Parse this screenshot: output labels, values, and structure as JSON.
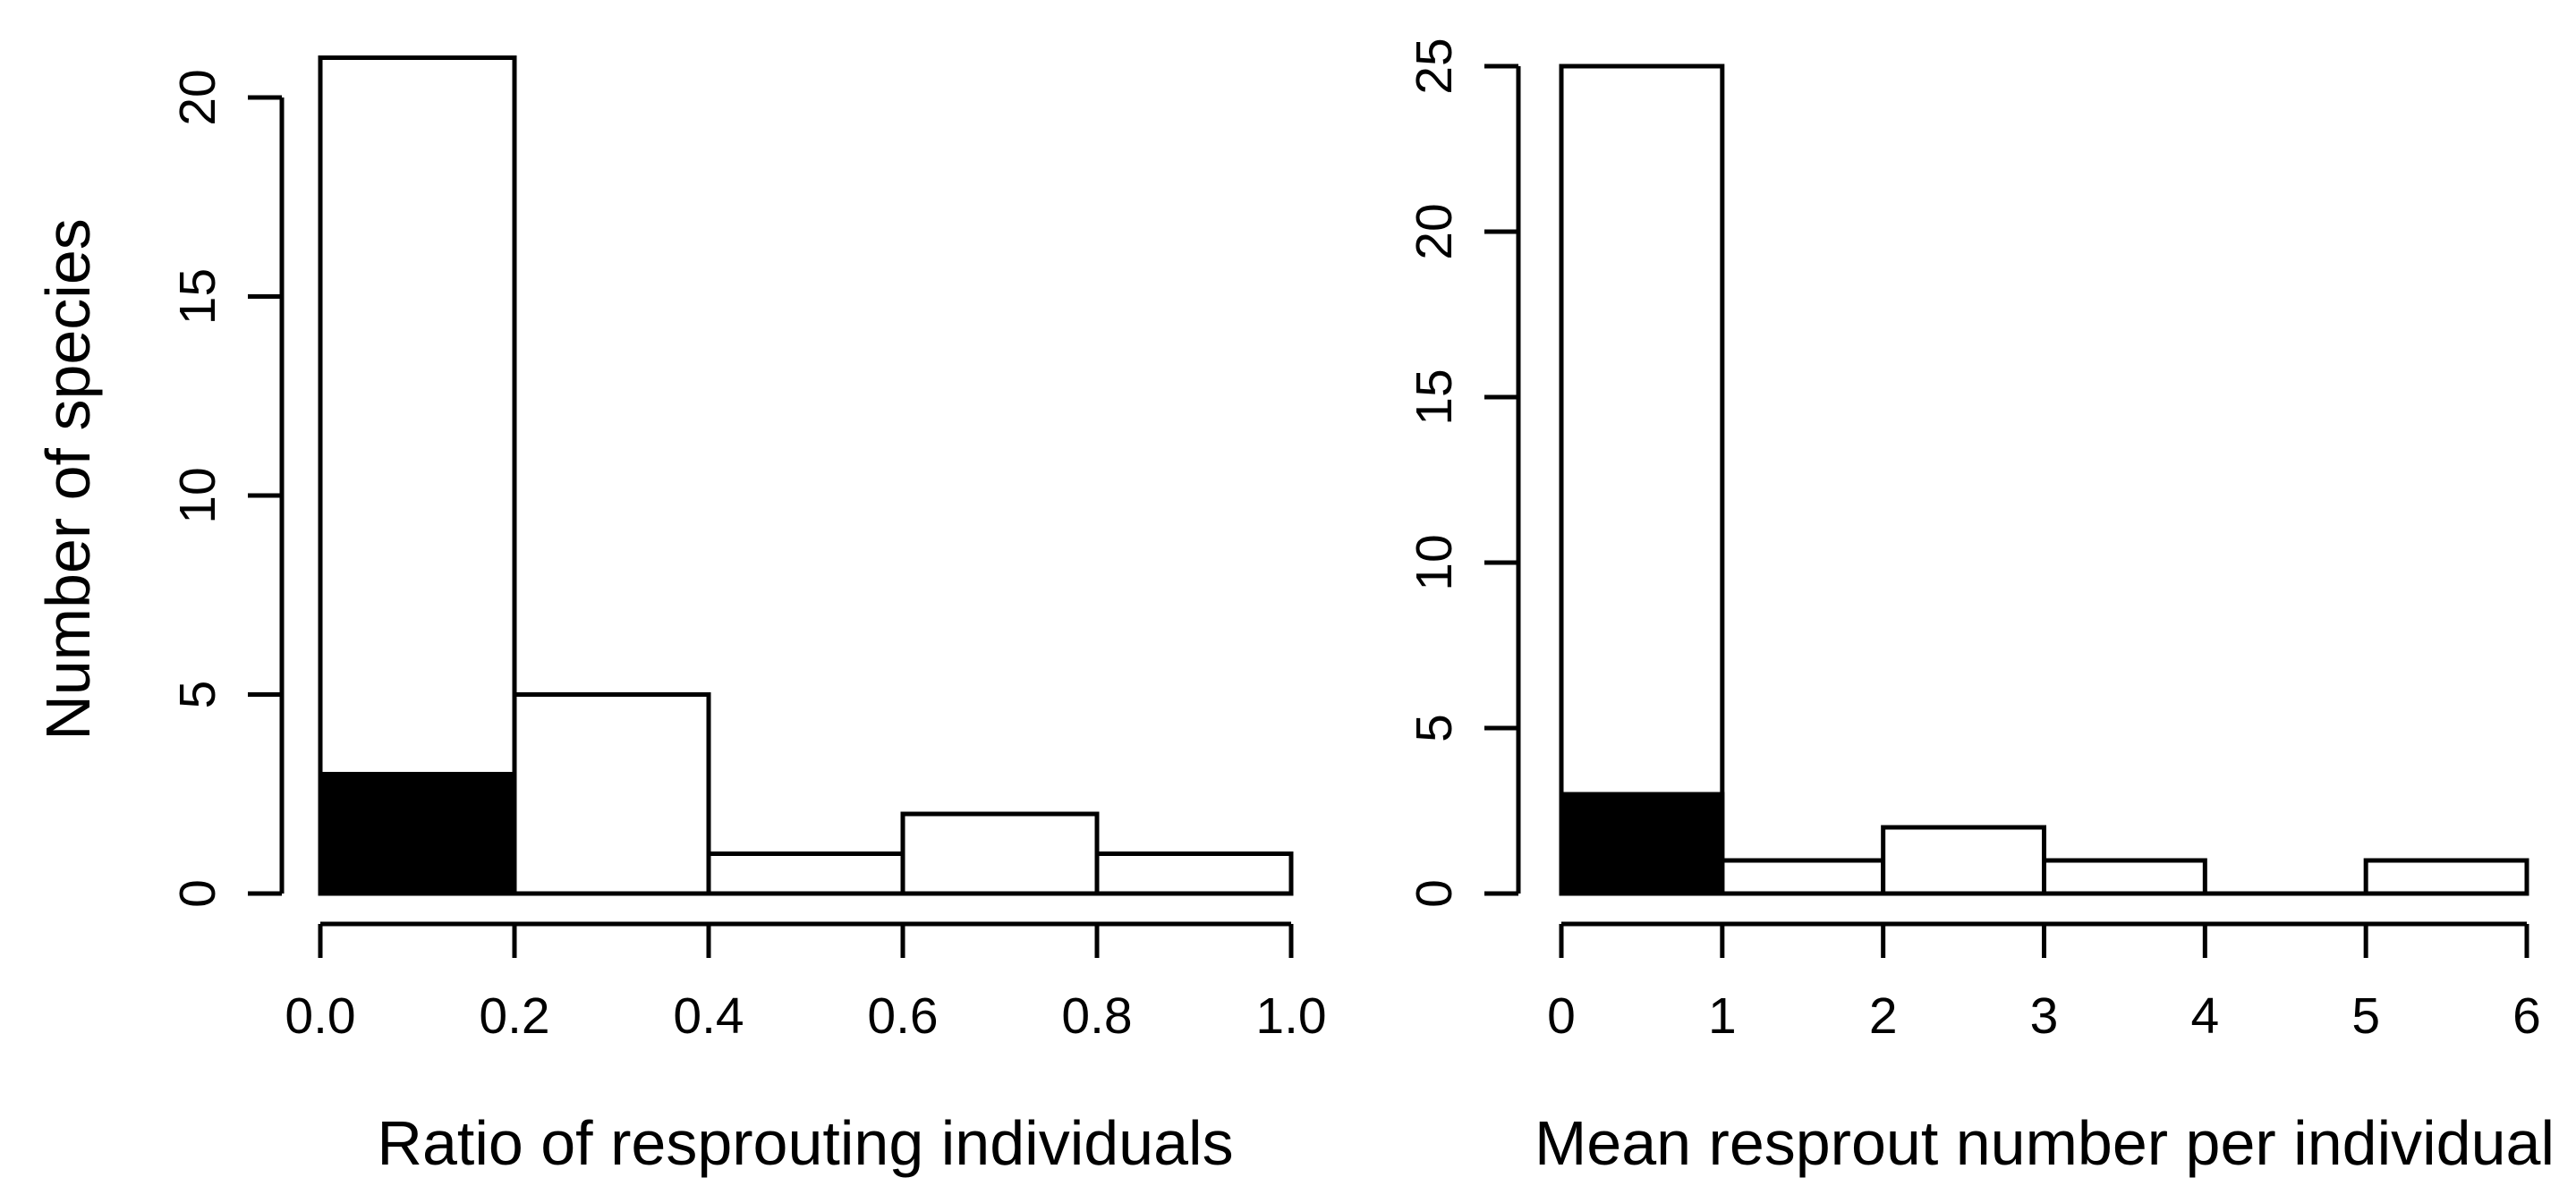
{
  "style": {
    "background": "#ffffff",
    "stroke_color": "#000000",
    "text_color": "#000000",
    "bar_fill": "#ffffff",
    "highlight_fill": "#000000"
  },
  "chart_data": [
    {
      "type": "bar",
      "subtype": "histogram",
      "panel": "left",
      "xlabel": "Ratio of resprouting individuals",
      "ylabel": "Number of species",
      "bin_edges": [
        0.0,
        0.2,
        0.4,
        0.6,
        0.8,
        1.0
      ],
      "series": [
        {
          "name": "all-species-open-bars",
          "fill": "#ffffff",
          "values": [
            21,
            5,
            1,
            2,
            1
          ]
        },
        {
          "name": "highlighted-subset-filled-bars",
          "fill": "#000000",
          "values": [
            3,
            0,
            0,
            0,
            0
          ]
        }
      ],
      "x_tick_values": [
        0.0,
        0.2,
        0.4,
        0.6,
        0.8,
        1.0
      ],
      "x_tick_labels": [
        "0.0",
        "0.2",
        "0.4",
        "0.6",
        "0.8",
        "1.0"
      ],
      "y_tick_values": [
        0,
        5,
        10,
        15,
        20
      ],
      "y_tick_labels": [
        "0",
        "5",
        "10",
        "15",
        "20"
      ],
      "xlim": [
        0.0,
        1.0
      ],
      "ylim": [
        0,
        21
      ],
      "grid": false,
      "legend": "none"
    },
    {
      "type": "bar",
      "subtype": "histogram",
      "panel": "right",
      "xlabel": "Mean resprout number per individual",
      "ylabel": "",
      "bin_edges": [
        0,
        1,
        2,
        3,
        4,
        5,
        6
      ],
      "series": [
        {
          "name": "all-species-open-bars",
          "fill": "#ffffff",
          "values": [
            25,
            1,
            2,
            1,
            0,
            1
          ]
        },
        {
          "name": "highlighted-subset-filled-bars",
          "fill": "#000000",
          "values": [
            3,
            0,
            0,
            0,
            0,
            0
          ]
        }
      ],
      "x_tick_values": [
        0,
        1,
        2,
        3,
        4,
        5,
        6
      ],
      "x_tick_labels": [
        "0",
        "1",
        "2",
        "3",
        "4",
        "5",
        "6"
      ],
      "y_tick_values": [
        0,
        5,
        10,
        15,
        20,
        25
      ],
      "y_tick_labels": [
        "0",
        "5",
        "10",
        "15",
        "20",
        "25"
      ],
      "xlim": [
        0,
        6
      ],
      "ylim": [
        0,
        25
      ],
      "grid": false,
      "legend": "none"
    }
  ]
}
